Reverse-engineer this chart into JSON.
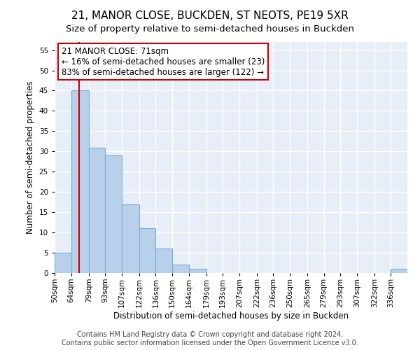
{
  "title": "21, MANOR CLOSE, BUCKDEN, ST NEOTS, PE19 5XR",
  "subtitle": "Size of property relative to semi-detached houses in Buckden",
  "xlabel": "Distribution of semi-detached houses by size in Buckden",
  "ylabel": "Number of semi-detached properties",
  "bin_labels": [
    "50sqm",
    "64sqm",
    "79sqm",
    "93sqm",
    "107sqm",
    "122sqm",
    "136sqm",
    "150sqm",
    "164sqm",
    "179sqm",
    "193sqm",
    "207sqm",
    "222sqm",
    "236sqm",
    "250sqm",
    "265sqm",
    "279sqm",
    "293sqm",
    "307sqm",
    "322sqm",
    "336sqm"
  ],
  "bin_edges": [
    50,
    64,
    79,
    93,
    107,
    122,
    136,
    150,
    164,
    179,
    193,
    207,
    222,
    236,
    250,
    265,
    279,
    293,
    307,
    322,
    336,
    350
  ],
  "counts": [
    5,
    45,
    31,
    29,
    17,
    11,
    6,
    2,
    1,
    0,
    0,
    0,
    0,
    0,
    0,
    0,
    0,
    0,
    0,
    0,
    1
  ],
  "property_line_x": 71,
  "bar_color": "#b8d0ea",
  "bar_edge_color": "#7aafd4",
  "line_color": "#cc0000",
  "annotation_title": "21 MANOR CLOSE: 71sqm",
  "annotation_line1": "← 16% of semi-detached houses are smaller (23)",
  "annotation_line2": "83% of semi-detached houses are larger (122) →",
  "annotation_box_color": "#ffffff",
  "annotation_box_edge": "#cc0000",
  "ylim_max": 57,
  "yticks": [
    0,
    5,
    10,
    15,
    20,
    25,
    30,
    35,
    40,
    45,
    50,
    55
  ],
  "footer1": "Contains HM Land Registry data © Crown copyright and database right 2024.",
  "footer2": "Contains public sector information licensed under the Open Government Licence v3.0.",
  "plot_bg_color": "#e8eef8",
  "fig_bg_color": "#ffffff",
  "grid_color": "#ffffff",
  "title_fontsize": 11,
  "subtitle_fontsize": 9.5,
  "axis_label_fontsize": 8.5,
  "tick_fontsize": 7.5,
  "footer_fontsize": 7,
  "ann_fontsize": 8.5
}
